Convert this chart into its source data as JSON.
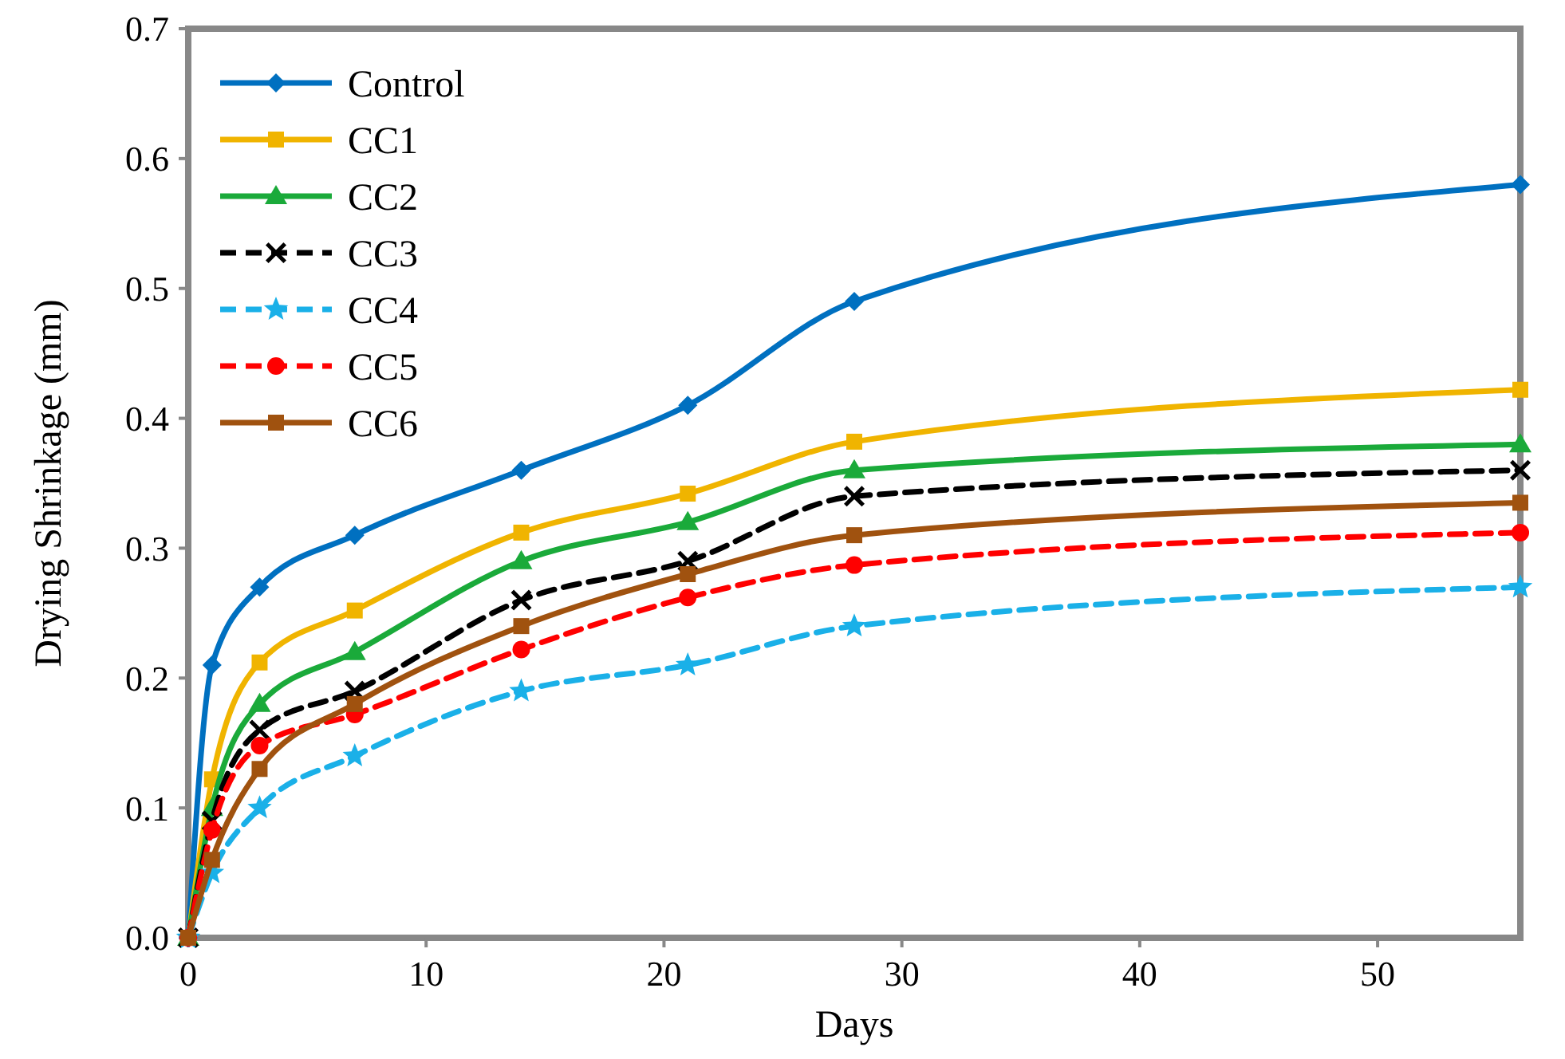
{
  "chart_data": {
    "type": "line",
    "xlabel": "Days",
    "ylabel": "Drying Shrinkage (mm)",
    "x": [
      0,
      1,
      3,
      7,
      14,
      21,
      28,
      56
    ],
    "xlim": [
      0,
      56
    ],
    "xticks": [
      0,
      10,
      20,
      30,
      40,
      50
    ],
    "ylim": [
      0,
      0.7
    ],
    "yticks": [
      {
        "value": 0,
        "label": "0.0"
      },
      0.1,
      0.2,
      0.3,
      0.4,
      0.5,
      0.6,
      0.7
    ],
    "grid": false,
    "legend": "top left",
    "series": [
      {
        "name": "Control",
        "color": "#0070c0",
        "marker": "diamond",
        "line_style": "solid",
        "values": [
          0,
          0.21,
          0.27,
          0.31,
          0.36,
          0.41,
          0.49,
          0.58
        ]
      },
      {
        "name": "CC1",
        "color": "#f0b400",
        "marker": "square",
        "line_style": "solid",
        "values": [
          0,
          0.122,
          0.212,
          0.252,
          0.312,
          0.342,
          0.382,
          0.422
        ]
      },
      {
        "name": "CC2",
        "color": "#1aaa3a",
        "marker": "triangle",
        "line_style": "solid",
        "values": [
          0,
          0.1,
          0.18,
          0.22,
          0.29,
          0.32,
          0.36,
          0.38
        ]
      },
      {
        "name": "CC3",
        "color": "#000000",
        "marker": "cross",
        "line_style": "dashed",
        "values": [
          0,
          0.09,
          0.16,
          0.19,
          0.26,
          0.29,
          0.34,
          0.36
        ]
      },
      {
        "name": "CC4",
        "color": "#1ab0e8",
        "marker": "star",
        "line_style": "dashed",
        "values": [
          0,
          0.05,
          0.1,
          0.14,
          0.19,
          0.21,
          0.24,
          0.27
        ]
      },
      {
        "name": "CC5",
        "color": "#ff0000",
        "marker": "circle",
        "line_style": "dashed",
        "values": [
          0,
          0.083,
          0.148,
          0.172,
          0.222,
          0.262,
          0.287,
          0.312
        ]
      },
      {
        "name": "CC6",
        "color": "#a0520f",
        "marker": "square",
        "line_style": "solid",
        "values": [
          0,
          0.06,
          0.13,
          0.18,
          0.24,
          0.28,
          0.31,
          0.335
        ]
      }
    ]
  }
}
